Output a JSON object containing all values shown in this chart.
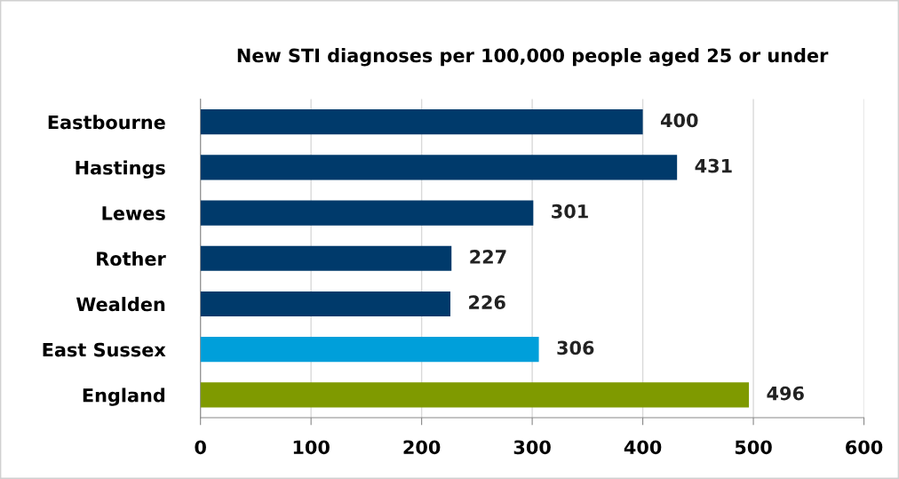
{
  "chart_data": {
    "type": "bar",
    "orientation": "horizontal",
    "title": "New STI diagnoses per 100,000 people aged 25 or under",
    "categories": [
      "Eastbourne",
      "Hastings",
      "Lewes",
      "Rother",
      "Wealden",
      "East Sussex",
      "England"
    ],
    "values": [
      400,
      431,
      301,
      227,
      226,
      306,
      496
    ],
    "colors": [
      "#003a6b",
      "#003a6b",
      "#003a6b",
      "#003a6b",
      "#003a6b",
      "#009fda",
      "#7f9a00"
    ],
    "xlim": [
      0,
      600
    ],
    "xticks": [
      0,
      100,
      200,
      300,
      400,
      500,
      600
    ],
    "grid": "x",
    "data_labels": true
  }
}
